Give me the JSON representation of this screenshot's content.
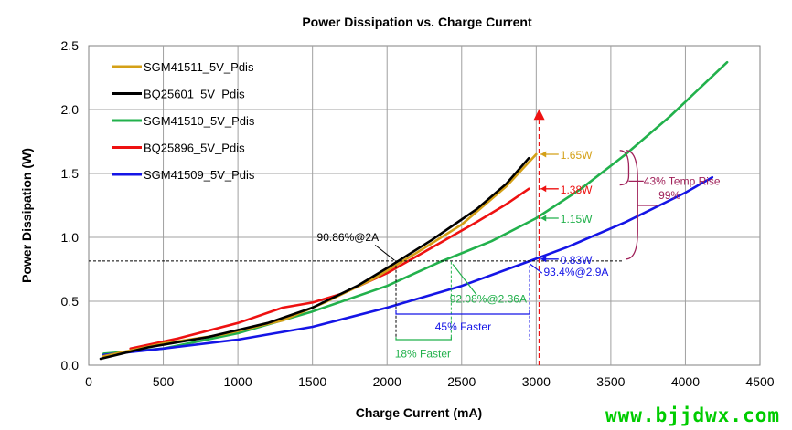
{
  "chart_data": {
    "type": "line",
    "title": "Power Dissipation vs. Charge Current",
    "xlabel": "Charge Current (mA)",
    "ylabel": "Power Dissipation (W)",
    "xlim": [
      0,
      4500
    ],
    "ylim": [
      0,
      2.5
    ],
    "xticks": [
      "0",
      "500",
      "1000",
      "1500",
      "2000",
      "2500",
      "3000",
      "3500",
      "4000",
      "4500"
    ],
    "yticks": [
      "0.0",
      "0.5",
      "1.0",
      "1.5",
      "2.0",
      "2.5"
    ],
    "grid": true,
    "legend_position": "top-left",
    "series": [
      {
        "name": "SGM41511_5V_Pdis",
        "color": "#d4a017",
        "x": [
          100,
          500,
          900,
          1300,
          1600,
          1900,
          2200,
          2500,
          2800,
          3000
        ],
        "y": [
          0.07,
          0.17,
          0.24,
          0.35,
          0.5,
          0.67,
          0.88,
          1.1,
          1.4,
          1.65
        ]
      },
      {
        "name": "BQ25601_5V_Pdis",
        "color": "#000000",
        "x": [
          80,
          400,
          800,
          1200,
          1500,
          1800,
          2000,
          2300,
          2600,
          2800,
          2950
        ],
        "y": [
          0.05,
          0.14,
          0.22,
          0.33,
          0.45,
          0.62,
          0.76,
          0.98,
          1.22,
          1.42,
          1.62
        ]
      },
      {
        "name": "SGM41510_5V_Pdis",
        "color": "#22b14c",
        "x": [
          100,
          500,
          1000,
          1500,
          2000,
          2360,
          2700,
          3000,
          3300,
          3600,
          3900,
          4280
        ],
        "y": [
          0.09,
          0.13,
          0.25,
          0.42,
          0.62,
          0.81,
          0.97,
          1.15,
          1.38,
          1.65,
          1.95,
          2.37
        ]
      },
      {
        "name": "BQ25896_5V_Pdis",
        "color": "#ee1111",
        "x": [
          280,
          600,
          1000,
          1300,
          1500,
          1700,
          2000,
          2300,
          2600,
          2800,
          2950
        ],
        "y": [
          0.13,
          0.21,
          0.33,
          0.45,
          0.49,
          0.56,
          0.72,
          0.92,
          1.12,
          1.26,
          1.38
        ]
      },
      {
        "name": "SGM41509_5V_Pdis",
        "color": "#1515e6",
        "x": [
          100,
          500,
          1000,
          1500,
          2000,
          2500,
          2900,
          3200,
          3600,
          4000,
          4180
        ],
        "y": [
          0.08,
          0.13,
          0.2,
          0.3,
          0.45,
          0.62,
          0.79,
          0.92,
          1.12,
          1.35,
          1.47
        ]
      }
    ],
    "annotations": {
      "eff_2a": "90.86%@2A",
      "eff_2_36a": "92.08%@2.36A",
      "eff_2_9a": "93.4%@2.9A",
      "faster_45": "45% Faster",
      "faster_18": "18% Faster",
      "temp_rise": "43% Temp Rise",
      "pct_99": "99%",
      "p_165": "1.65W",
      "p_138": "1.38W",
      "p_115": "1.15W",
      "p_083": "0.83W"
    }
  },
  "watermark": "www.bjjdwx.com"
}
